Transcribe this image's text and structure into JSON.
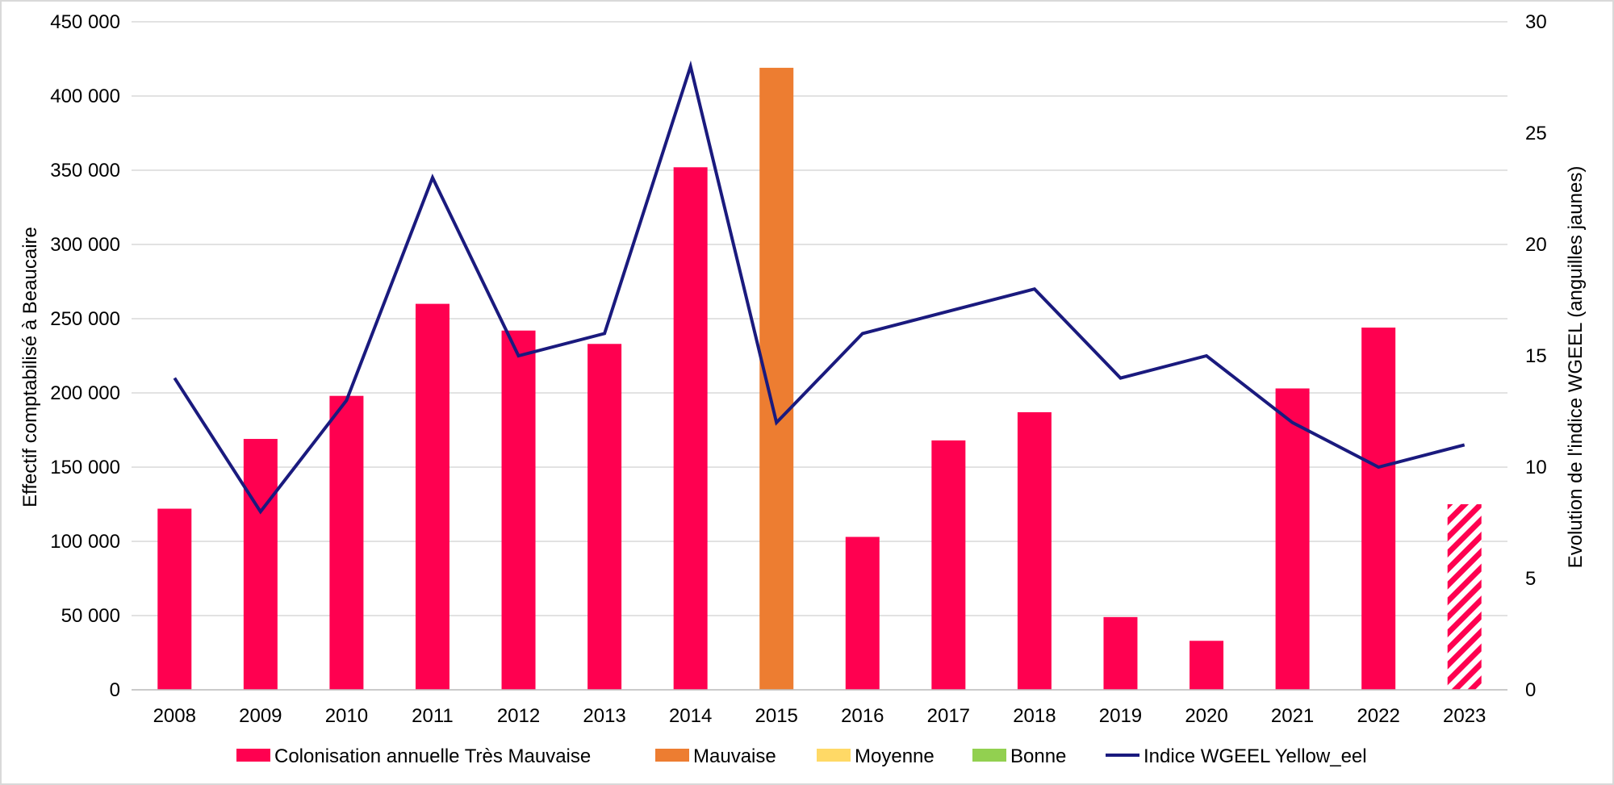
{
  "chart_data": {
    "type": "bar",
    "categories": [
      "2008",
      "2009",
      "2010",
      "2011",
      "2012",
      "2013",
      "2014",
      "2015",
      "2016",
      "2017",
      "2018",
      "2019",
      "2020",
      "2021",
      "2022",
      "2023"
    ],
    "series": [
      {
        "name": "Colonisation annuelle",
        "type": "bar",
        "axis": "left",
        "values": [
          122000,
          169000,
          198000,
          260000,
          242000,
          233000,
          352000,
          419000,
          103000,
          168000,
          187000,
          49000,
          33000,
          203000,
          244000,
          125000
        ],
        "point_classes": [
          "Très Mauvaise",
          "Très Mauvaise",
          "Très Mauvaise",
          "Très Mauvaise",
          "Très Mauvaise",
          "Très Mauvaise",
          "Très Mauvaise",
          "Mauvaise",
          "Très Mauvaise",
          "Très Mauvaise",
          "Très Mauvaise",
          "Très Mauvaise",
          "Très Mauvaise",
          "Très Mauvaise",
          "Très Mauvaise",
          "Très Mauvaise"
        ],
        "hatched": [
          false,
          false,
          false,
          false,
          false,
          false,
          false,
          false,
          false,
          false,
          false,
          false,
          false,
          false,
          false,
          true
        ]
      },
      {
        "name": "Indice WGEEL Yellow_eel",
        "type": "line",
        "axis": "right",
        "values": [
          14,
          8,
          13,
          23,
          15,
          16,
          28,
          12,
          16,
          17,
          18,
          14,
          15,
          12,
          10,
          11
        ]
      }
    ],
    "classes": [
      {
        "name": "Très Mauvaise",
        "color": "#FF0050"
      },
      {
        "name": "Mauvaise",
        "color": "#ED7D31"
      },
      {
        "name": "Moyenne",
        "color": "#FFD966"
      },
      {
        "name": "Bonne",
        "color": "#92D050"
      }
    ],
    "line_color": "#1A1A7E",
    "ylabel": "Effectif comptabilisé à Beaucaire",
    "y2label": "Evolution de l'indice WGEEL  (anguilles jaunes)",
    "ylim": [
      0,
      450000
    ],
    "y2lim": [
      0,
      30
    ],
    "yticks": [
      "0",
      "50 000",
      "100 000",
      "150 000",
      "200 000",
      "250 000",
      "300 000",
      "350 000",
      "400 000",
      "450 000"
    ],
    "y2ticks": [
      "0",
      "5",
      "10",
      "15",
      "20",
      "25",
      "30"
    ],
    "grid": true,
    "legend_position": "bottom",
    "legend": [
      {
        "label": "Colonisation annuelle Très Mauvaise",
        "kind": "box",
        "color": "#FF0050"
      },
      {
        "label": "Mauvaise",
        "kind": "box",
        "color": "#ED7D31"
      },
      {
        "label": "Moyenne",
        "kind": "box",
        "color": "#FFD966"
      },
      {
        "label": "Bonne",
        "kind": "box",
        "color": "#92D050"
      },
      {
        "label": "Indice WGEEL Yellow_eel",
        "kind": "line",
        "color": "#1A1A7E"
      }
    ]
  }
}
